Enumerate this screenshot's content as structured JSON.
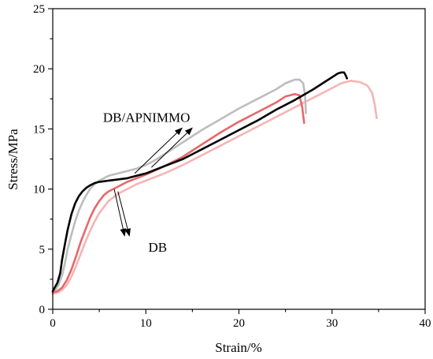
{
  "chart_data": {
    "type": "line",
    "title": "",
    "xlabel": "Strain/%",
    "ylabel": "Stress/MPa",
    "xlim": [
      0,
      40
    ],
    "ylim": [
      0,
      25
    ],
    "xticks": [
      0,
      10,
      20,
      30,
      40
    ],
    "yticks": [
      0,
      5,
      10,
      15,
      20,
      25
    ],
    "xminor": [
      5,
      15,
      25,
      35
    ],
    "yminor": [
      2.5,
      7.5,
      12.5,
      17.5,
      22.5
    ],
    "grid": false,
    "legend": "none",
    "annotations": [
      {
        "text": "DB/APNIMMO",
        "x": 5.0,
        "y": 15.6,
        "points_to": [
          {
            "x": 8.8,
            "y": 11.3
          },
          {
            "x": 10.6,
            "y": 11.8
          }
        ]
      },
      {
        "text": "DB",
        "x": 6.2,
        "y": 4.8,
        "points_to": [
          {
            "x": 6.6,
            "y": 10.0
          },
          {
            "x": 7.0,
            "y": 9.8
          }
        ]
      }
    ],
    "series": [
      {
        "color": "#000000",
        "x": [
          0,
          0.2,
          0.5,
          0.8,
          1.0,
          1.3,
          1.6,
          2.0,
          2.4,
          2.8,
          3.2,
          3.6,
          4.0,
          4.5,
          5.0,
          6.0,
          7.0,
          8.0,
          9.0,
          10.0,
          12.0,
          14.0,
          16.0,
          18.0,
          20.0,
          22.0,
          24.0,
          26.0,
          28.0,
          29.0,
          30.0,
          30.6,
          31.0,
          31.3,
          31.5,
          31.6
        ],
        "y": [
          1.5,
          1.8,
          2.2,
          3.0,
          4.1,
          5.4,
          6.6,
          7.9,
          8.8,
          9.4,
          9.8,
          10.1,
          10.3,
          10.5,
          10.6,
          10.7,
          10.8,
          10.9,
          11.1,
          11.3,
          11.9,
          12.5,
          13.3,
          14.1,
          14.9,
          15.7,
          16.6,
          17.4,
          18.3,
          18.8,
          19.3,
          19.6,
          19.7,
          19.7,
          19.4,
          19.2
        ]
      },
      {
        "color": "#bdbdbd",
        "x": [
          0,
          0.3,
          0.6,
          1.0,
          1.3,
          1.6,
          2.0,
          2.4,
          2.8,
          3.2,
          3.6,
          4.0,
          4.5,
          5.0,
          6.0,
          7.0,
          8.0,
          9.0,
          10.0,
          11.0,
          12.0,
          14.0,
          16.0,
          18.0,
          20.0,
          22.0,
          24.0,
          25.0,
          26.0,
          26.5,
          26.9,
          27.1,
          27.2
        ],
        "y": [
          1.4,
          1.6,
          2.0,
          2.8,
          3.8,
          5.0,
          6.2,
          7.3,
          8.2,
          8.9,
          9.5,
          10.0,
          10.4,
          10.7,
          11.1,
          11.3,
          11.5,
          11.7,
          12.0,
          12.4,
          12.9,
          13.9,
          14.9,
          15.8,
          16.7,
          17.5,
          18.3,
          18.8,
          19.1,
          19.1,
          18.8,
          17.8,
          16.3
        ]
      },
      {
        "color": "#e8676a",
        "x": [
          0,
          0.5,
          1.0,
          1.5,
          2.0,
          2.5,
          3.0,
          3.5,
          4.0,
          4.5,
          5.0,
          5.5,
          6.0,
          7.0,
          8.0,
          9.0,
          10.0,
          12.0,
          14.0,
          16.0,
          18.0,
          20.0,
          22.0,
          24.0,
          25.0,
          26.0,
          26.5,
          26.8,
          27.0
        ],
        "y": [
          1.4,
          1.5,
          1.8,
          2.4,
          3.3,
          4.4,
          5.6,
          6.6,
          7.6,
          8.4,
          9.0,
          9.5,
          9.8,
          10.2,
          10.6,
          10.9,
          11.2,
          11.9,
          12.7,
          13.7,
          14.7,
          15.6,
          16.4,
          17.2,
          17.7,
          17.9,
          17.8,
          16.8,
          15.5
        ]
      },
      {
        "color": "#f6b4b4",
        "x": [
          0,
          0.5,
          1.0,
          1.5,
          2.0,
          2.5,
          3.0,
          3.5,
          4.0,
          4.5,
          5.0,
          6.0,
          7.0,
          8.0,
          9.0,
          10.0,
          12.0,
          14.0,
          16.0,
          18.0,
          20.0,
          22.0,
          24.0,
          26.0,
          28.0,
          30.0,
          31.0,
          32.0,
          33.0,
          33.8,
          34.3,
          34.6,
          34.8
        ],
        "y": [
          1.3,
          1.4,
          1.6,
          2.0,
          2.7,
          3.6,
          4.6,
          5.6,
          6.5,
          7.3,
          8.0,
          9.0,
          9.6,
          10.0,
          10.4,
          10.7,
          11.3,
          12.0,
          12.8,
          13.6,
          14.4,
          15.2,
          16.0,
          16.8,
          17.6,
          18.4,
          18.8,
          19.0,
          18.9,
          18.6,
          18.0,
          17.0,
          15.9
        ]
      }
    ]
  }
}
